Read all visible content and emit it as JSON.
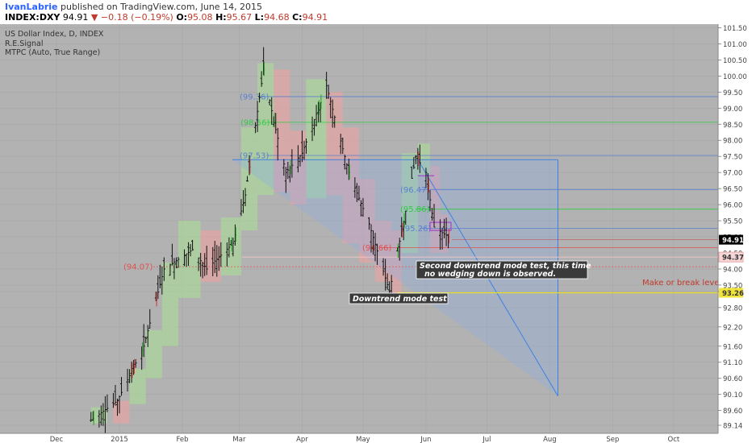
{
  "header": {
    "author": "IvanLabrie",
    "published_text": "published on TradingView.com, June 14, 2015",
    "symbol": "INDEX:DXY",
    "last": "94.91",
    "change": "▼ −0.18 (−0.19%)",
    "open_label": "O:",
    "open": "95.08",
    "high_label": "H:",
    "high": "95.67",
    "low_label": "L:",
    "low": "94.68",
    "close_label": "C:",
    "close": "94.91"
  },
  "legend": {
    "line1": "US Dollar Index, D, INDEX",
    "line2": "R.E.Signal",
    "line3": "MTPC (Auto, True Range)"
  },
  "chart_data": {
    "type": "candlestick",
    "ylim": [
      89.1,
      101.6
    ],
    "y_ticks": [
      "101.50",
      "101.00",
      "100.50",
      "100.00",
      "99.50",
      "99.00",
      "98.50",
      "98.00",
      "97.50",
      "97.00",
      "96.50",
      "96.00",
      "95.50",
      "95.00",
      "94.50",
      "94.00",
      "93.50",
      "93.30",
      "92.80",
      "92.20",
      "91.60",
      "91.10",
      "90.60",
      "90.10",
      "89.60",
      "89.14"
    ],
    "y_tick_values": [
      101.5,
      101.0,
      100.5,
      100.0,
      99.5,
      99.0,
      98.5,
      98.0,
      97.5,
      97.0,
      96.5,
      96.0,
      95.5,
      95.0,
      94.5,
      94.0,
      93.5,
      93.3,
      92.8,
      92.2,
      91.6,
      91.1,
      90.6,
      90.1,
      89.6,
      89.14
    ],
    "x_ticks": [
      "Dec",
      "2015",
      "Feb",
      "Mar",
      "Apr",
      "May",
      "Jun",
      "Jul",
      "Aug",
      "Sep",
      "Oct"
    ],
    "x_tick_dates": [
      "2014-12-01",
      "2015-01-01",
      "2015-02-01",
      "2015-03-01",
      "2015-04-01",
      "2015-05-01",
      "2015-06-01",
      "2015-07-01",
      "2015-08-01",
      "2015-09-01",
      "2015-10-01"
    ],
    "levels": [
      {
        "label": "(99.36)",
        "value": 99.36,
        "color": "#5a7fd0"
      },
      {
        "label": "(98.56)",
        "value": 98.56,
        "color": "#2ecc40"
      },
      {
        "label": "(97.53)",
        "value": 97.53,
        "color": "#5a7fd0"
      },
      {
        "label": "(96.47)",
        "value": 96.47,
        "color": "#5a7fd0"
      },
      {
        "label": "(95.86)",
        "value": 95.86,
        "color": "#2ecc40"
      },
      {
        "label": "(95.26)",
        "value": 95.26,
        "color": "#5a7fd0"
      },
      {
        "label": "(94.66)",
        "value": 94.66,
        "color": "#e05050"
      },
      {
        "label": "(94.07)",
        "value": 94.07,
        "color": "#e05050"
      }
    ],
    "price_badges": [
      {
        "label": "94.91",
        "value": 94.91,
        "style": "last"
      },
      {
        "label": "94.37",
        "value": 94.37,
        "style": "pink"
      },
      {
        "label": "93.26",
        "value": 93.26,
        "style": "yellow"
      }
    ],
    "annotations": [
      {
        "text": "Second downtrend mode test, this time",
        "text2": "no wedging down is observed."
      },
      {
        "text": "Downtrend mode test"
      },
      {
        "text": "Make or break level"
      }
    ],
    "projection": {
      "from_date": "2015-05-28",
      "from_price": 97.4,
      "to_date": "2015-08-05",
      "to_price": 90.05
    }
  }
}
